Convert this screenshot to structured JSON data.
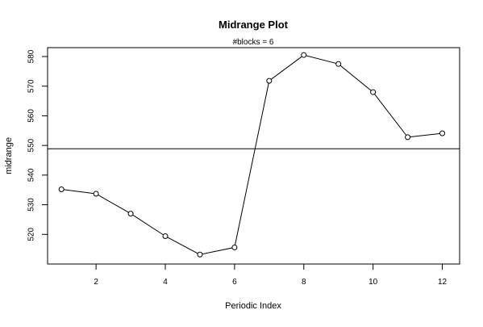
{
  "chart_data": {
    "type": "line",
    "title": "Midrange Plot",
    "subtitle": "#blocks =  6",
    "xlabel": "Periodic Index",
    "ylabel": "midrange",
    "x": [
      1,
      2,
      3,
      4,
      5,
      6,
      7,
      8,
      9,
      10,
      11,
      12
    ],
    "values": [
      535.2,
      533.7,
      527.0,
      519.4,
      513.2,
      515.6,
      571.8,
      580.5,
      577.5,
      568.0,
      552.8,
      554.1
    ],
    "reference_line": 548.9,
    "xlim": [
      0.6,
      12.5
    ],
    "ylim": [
      510,
      583
    ],
    "x_ticks": [
      2,
      4,
      6,
      8,
      10,
      12
    ],
    "y_ticks": [
      520,
      530,
      540,
      550,
      560,
      570,
      580
    ],
    "x_tick_labels": [
      "2",
      "4",
      "6",
      "8",
      "10",
      "12"
    ],
    "y_tick_labels": [
      "520",
      "530",
      "540",
      "550",
      "560",
      "570",
      "580"
    ],
    "grid": false,
    "colors": {
      "line": "#000000",
      "reference": "#000000",
      "marker_fill": "#ffffff"
    }
  }
}
